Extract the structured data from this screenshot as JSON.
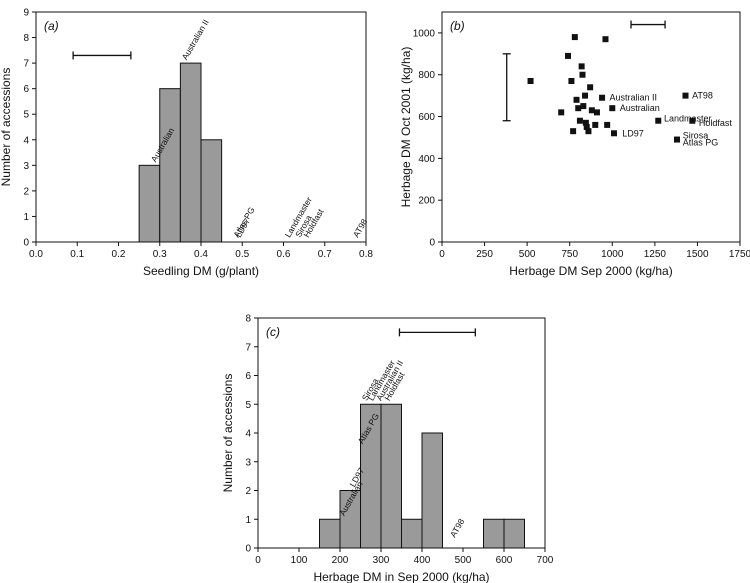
{
  "chart_data": [
    {
      "panel": "(a)",
      "type": "bar",
      "xlabel": "Seedling DM (g/plant)",
      "ylabel": "Number of accessions",
      "xlim": [
        0.0,
        0.8
      ],
      "ylim": [
        0,
        9
      ],
      "x_ticks": [
        "0.0",
        "0.1",
        "0.2",
        "0.3",
        "0.4",
        "0.5",
        "0.6",
        "0.7",
        "0.8"
      ],
      "y_ticks": [
        "0",
        "1",
        "2",
        "3",
        "4",
        "5",
        "6",
        "7",
        "8",
        "9"
      ],
      "bin_width": 0.05,
      "bins": [
        {
          "x0": 0.25,
          "x1": 0.3,
          "count": 3
        },
        {
          "x0": 0.3,
          "x1": 0.35,
          "count": 6
        },
        {
          "x0": 0.35,
          "x1": 0.4,
          "count": 7
        },
        {
          "x0": 0.4,
          "x1": 0.45,
          "count": 4
        }
      ],
      "error_bar": {
        "x_from": 0.09,
        "x_to": 0.23,
        "y": 7.3
      },
      "annotations": [
        {
          "text": "Australian",
          "x": 0.29,
          "y": 3.1
        },
        {
          "text": "Australian II",
          "x": 0.365,
          "y": 7.1
        },
        {
          "text": "Atlas PG",
          "x": 0.49,
          "y": 0.15
        },
        {
          "text": "LD97",
          "x": 0.495,
          "y": 0.15
        },
        {
          "text": "Landmaster",
          "x": 0.615,
          "y": 0.15
        },
        {
          "text": "Sirosa",
          "x": 0.64,
          "y": 0.15
        },
        {
          "text": "Holdfast",
          "x": 0.66,
          "y": 0.15
        },
        {
          "text": "AT98",
          "x": 0.78,
          "y": 0.15
        }
      ]
    },
    {
      "panel": "(b)",
      "type": "scatter",
      "xlabel": "Herbage DM Sep 2000 (kg/ha)",
      "ylabel": "Herbage DM Oct 2001 (kg/ha)",
      "xlim": [
        0,
        1750
      ],
      "ylim": [
        0,
        1100
      ],
      "x_ticks": [
        "0",
        "250",
        "500",
        "750",
        "1000",
        "1250",
        "1500",
        "1750"
      ],
      "y_ticks": [
        "0",
        "200",
        "400",
        "600",
        "800",
        "1000"
      ],
      "points": [
        [
          520,
          770
        ],
        [
          700,
          620
        ],
        [
          740,
          890
        ],
        [
          760,
          770
        ],
        [
          770,
          530
        ],
        [
          780,
          980
        ],
        [
          790,
          680
        ],
        [
          800,
          640
        ],
        [
          810,
          580
        ],
        [
          820,
          840
        ],
        [
          825,
          800
        ],
        [
          830,
          650
        ],
        [
          840,
          700
        ],
        [
          845,
          570
        ],
        [
          850,
          550
        ],
        [
          860,
          530
        ],
        [
          870,
          740
        ],
        [
          880,
          630
        ],
        [
          900,
          560
        ],
        [
          910,
          620
        ],
        [
          940,
          690
        ],
        [
          960,
          970
        ],
        [
          970,
          560
        ],
        [
          1000,
          640
        ],
        [
          1010,
          520
        ],
        [
          1270,
          580
        ],
        [
          1380,
          490
        ],
        [
          1430,
          700
        ],
        [
          1470,
          580
        ]
      ],
      "point_labels": [
        {
          "text": "Australian II",
          "x": 960,
          "y": 690
        },
        {
          "text": "Australian",
          "x": 1020,
          "y": 640
        },
        {
          "text": "LD97",
          "x": 1035,
          "y": 520
        },
        {
          "text": "Landmaster",
          "x": 1280,
          "y": 590
        },
        {
          "text": "AT98",
          "x": 1445,
          "y": 700
        },
        {
          "text": "Holdfast",
          "x": 1485,
          "y": 570
        },
        {
          "text": "Sirosa",
          "x": 1390,
          "y": 510
        },
        {
          "text": "Atlas PG",
          "x": 1390,
          "y": 475
        }
      ],
      "error_bar_h": {
        "x_from": 1110,
        "x_to": 1310,
        "y": 1040
      },
      "error_bar_v": {
        "x": 380,
        "y_from": 580,
        "y_to": 900
      }
    },
    {
      "panel": "(c)",
      "type": "bar",
      "xlabel": "Herbage DM in Sep 2000 (kg/ha)",
      "ylabel": "Number of accessions",
      "xlim": [
        0,
        700
      ],
      "ylim": [
        0,
        8
      ],
      "x_ticks": [
        "0",
        "100",
        "200",
        "300",
        "400",
        "500",
        "600",
        "700"
      ],
      "y_ticks": [
        "0",
        "1",
        "2",
        "3",
        "4",
        "5",
        "6",
        "7",
        "8"
      ],
      "bin_width": 50,
      "bins": [
        {
          "x0": 150,
          "x1": 200,
          "count": 1
        },
        {
          "x0": 200,
          "x1": 250,
          "count": 2
        },
        {
          "x0": 250,
          "x1": 300,
          "count": 5
        },
        {
          "x0": 300,
          "x1": 350,
          "count": 5
        },
        {
          "x0": 350,
          "x1": 400,
          "count": 1
        },
        {
          "x0": 400,
          "x1": 450,
          "count": 4
        },
        {
          "x0": 550,
          "x1": 600,
          "count": 1
        },
        {
          "x0": 600,
          "x1": 650,
          "count": 1
        }
      ],
      "error_bar": {
        "x_from": 345,
        "x_to": 530,
        "y": 7.5
      },
      "annotations": [
        {
          "text": "Australian",
          "x": 210,
          "y": 1.1
        },
        {
          "text": "LD97",
          "x": 235,
          "y": 2.1
        },
        {
          "text": "Atlas PG",
          "x": 255,
          "y": 3.6
        },
        {
          "text": "Sirosa",
          "x": 265,
          "y": 5.1
        },
        {
          "text": "Landmaster",
          "x": 280,
          "y": 5.1
        },
        {
          "text": "Australian II",
          "x": 300,
          "y": 5.1
        },
        {
          "text": "Holdfast",
          "x": 320,
          "y": 5.1
        },
        {
          "text": "AT98",
          "x": 480,
          "y": 0.35
        }
      ]
    }
  ]
}
